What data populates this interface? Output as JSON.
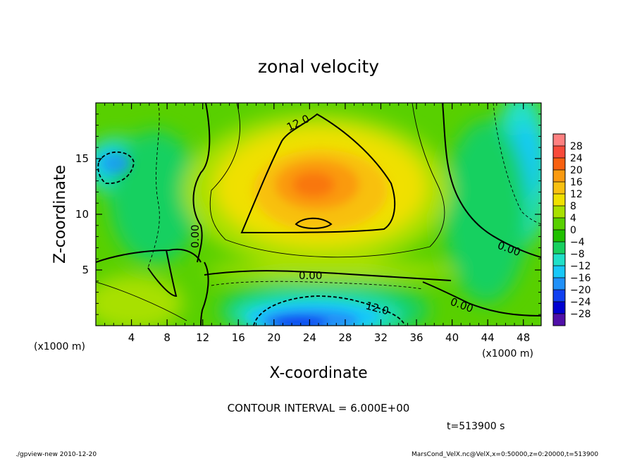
{
  "chart_data": {
    "type": "heatmap",
    "title": "zonal velocity",
    "xlabel": "X-coordinate",
    "ylabel": "Z-coordinate",
    "x_unit_note": "(x1000 m)",
    "y_unit_note": "(x1000 m)",
    "x_ticks": [
      4,
      8,
      12,
      16,
      20,
      24,
      28,
      32,
      36,
      40,
      44,
      48
    ],
    "y_ticks": [
      5,
      10,
      15
    ],
    "xlim": [
      0,
      50
    ],
    "ylim": [
      0,
      20
    ],
    "colorbar": {
      "labels": [
        28,
        24,
        20,
        16,
        12,
        8,
        4,
        0,
        -4,
        -8,
        -12,
        -16,
        -20,
        -24,
        -28
      ],
      "levels": [
        32,
        28,
        24,
        20,
        16,
        12,
        8,
        4,
        0,
        -4,
        -8,
        -12,
        -16,
        -20,
        -24,
        -28,
        -32
      ],
      "colors": [
        "#ff8080",
        "#f84a3a",
        "#f86010",
        "#fa9a10",
        "#f8c010",
        "#f0e000",
        "#a8e000",
        "#58d000",
        "#20c000",
        "#18d060",
        "#20e0c8",
        "#18c8f8",
        "#2090f8",
        "#1040f0",
        "#0000d0",
        "#5010a8"
      ]
    },
    "contour_labels": [
      "12.0",
      "0.00",
      "0.00",
      "12.0",
      "0.00",
      "0.00"
    ],
    "contour_interval": "CONTOUR INTERVAL = 6.000E+00",
    "time": "t=513900 s"
  },
  "footer": {
    "left": "./gpview-new   2010-12-20",
    "right": "MarsCond_VelX.nc@VelX,x=0:50000,z=0:20000,t=513900"
  }
}
